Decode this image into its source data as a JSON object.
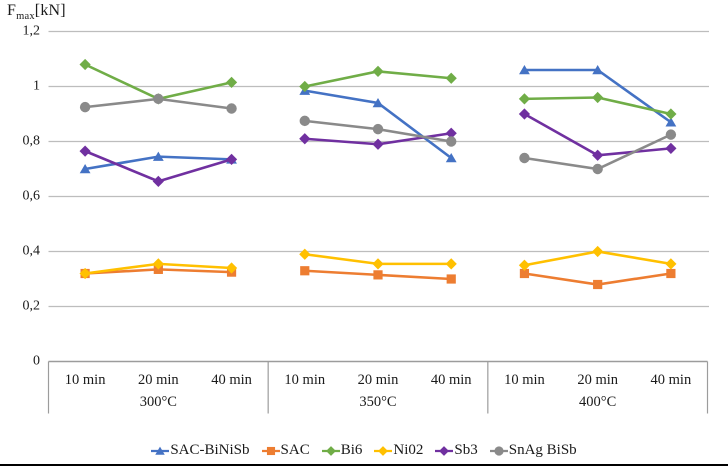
{
  "axis_title": {
    "symbol": "F",
    "subscript": "max",
    "unit": "[kN]"
  },
  "colors": {
    "gridline": "#BDBDBD",
    "axis_box": "#9C9C9C",
    "bottom_rule": "#000000",
    "text": "#1A1A1A"
  },
  "chart_data": {
    "type": "line",
    "title": "Fmax [kN]",
    "ylabel": "Fmax [kN]",
    "xlabel": "",
    "ylim": [
      0,
      1.2
    ],
    "grid": true,
    "legend_position": "bottom",
    "yticks": [
      {
        "value": 1.2,
        "label": "1,2"
      },
      {
        "value": 1.0,
        "label": "1"
      },
      {
        "value": 0.8,
        "label": "0,8"
      },
      {
        "value": 0.6,
        "label": "0,6"
      },
      {
        "value": 0.4,
        "label": "0,4"
      },
      {
        "value": 0.2,
        "label": "0,2"
      },
      {
        "value": 0.0,
        "label": "0"
      }
    ],
    "x_groups": [
      {
        "label": "300°C",
        "ticks": [
          "10 min",
          "20 min",
          "40 min"
        ]
      },
      {
        "label": "350°C",
        "ticks": [
          "10 min",
          "20 min",
          "40 min"
        ]
      },
      {
        "label": "400°C",
        "ticks": [
          "10 min",
          "20 min",
          "40 min"
        ]
      }
    ],
    "categories": [
      "300°C 10 min",
      "300°C 20 min",
      "300°C 40 min",
      "350°C 10 min",
      "350°C 20 min",
      "350°C 40 min",
      "400°C 10 min",
      "400°C 20 min",
      "400°C 40 min"
    ],
    "series": [
      {
        "name": "SAC-BiNiSb",
        "color": "#4472C4",
        "marker": "triangle",
        "values": [
          0.7,
          0.745,
          0.735,
          0.985,
          0.94,
          0.74,
          1.06,
          1.06,
          0.87
        ]
      },
      {
        "name": "SAC",
        "color": "#ED7D31",
        "marker": "square",
        "values": [
          0.32,
          0.335,
          0.325,
          0.33,
          0.315,
          0.3,
          0.32,
          0.28,
          0.32
        ]
      },
      {
        "name": "Bi6",
        "color": "#70AD47",
        "marker": "diamond",
        "values": [
          1.08,
          0.955,
          1.015,
          1.0,
          1.055,
          1.03,
          0.955,
          0.96,
          0.9
        ]
      },
      {
        "name": "Ni02",
        "color": "#FFC000",
        "marker": "diamond",
        "values": [
          0.32,
          0.355,
          0.34,
          0.39,
          0.355,
          0.355,
          0.35,
          0.4,
          0.355
        ]
      },
      {
        "name": "Sb3",
        "color": "#7030A0",
        "marker": "diamond",
        "values": [
          0.765,
          0.655,
          0.735,
          0.81,
          0.79,
          0.83,
          0.9,
          0.75,
          0.775
        ]
      },
      {
        "name": "SnAg BiSb",
        "color": "#8A8A8A",
        "marker": "circle",
        "values": [
          0.925,
          0.955,
          0.92,
          0.875,
          0.845,
          0.8,
          0.74,
          0.7,
          0.825
        ]
      }
    ]
  }
}
